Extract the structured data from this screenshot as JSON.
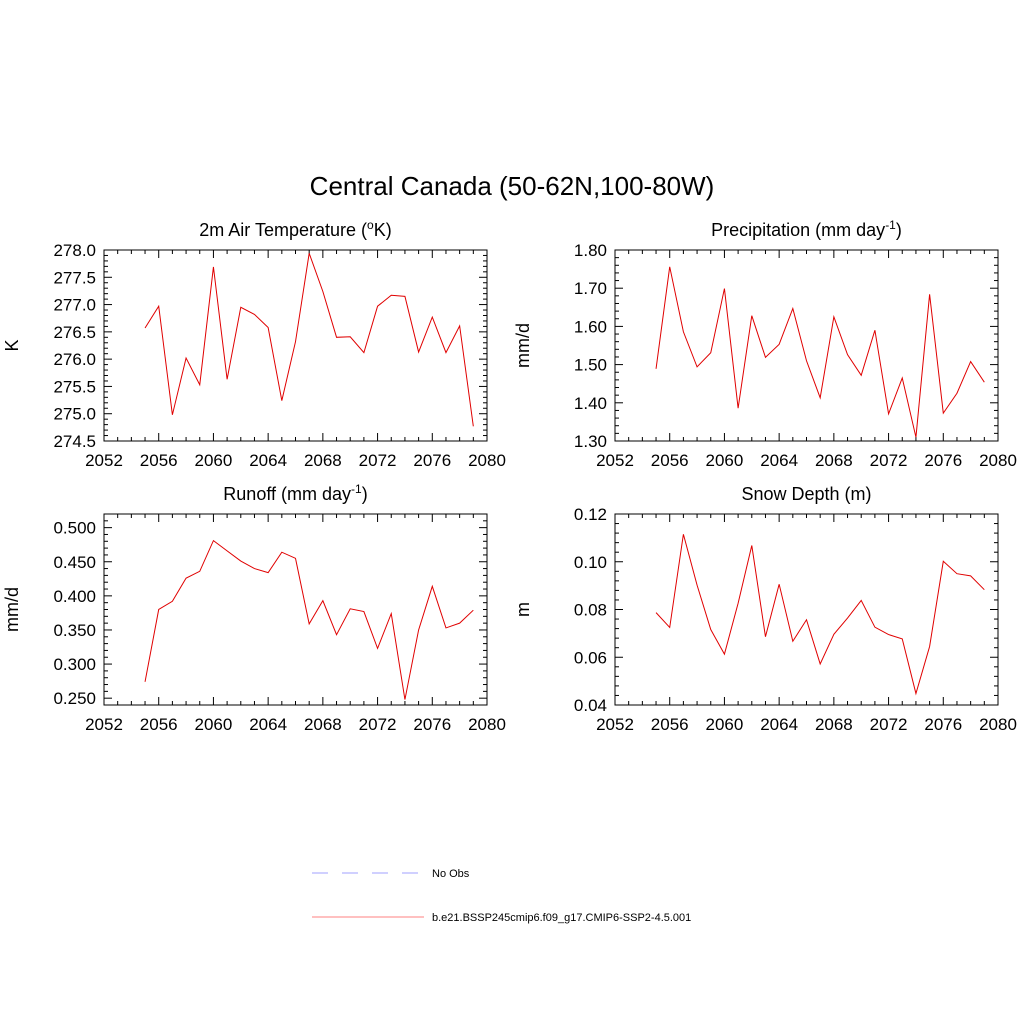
{
  "figure": {
    "title": "Central Canada (50-62N,100-80W)"
  },
  "chart_data": [
    {
      "type": "line",
      "title": "2m Air Temperature (",
      "title_sup": "o",
      "title_tail": "K)",
      "ylabel": "K",
      "xlim": [
        2052,
        2080
      ],
      "ylim": [
        274.5,
        278.0
      ],
      "x_ticks": [
        2052,
        2056,
        2060,
        2064,
        2068,
        2072,
        2076,
        2080
      ],
      "y_ticks": [
        "274.5",
        "275.0",
        "275.5",
        "276.0",
        "276.5",
        "277.0",
        "277.5",
        "278.0"
      ],
      "series": [
        {
          "color": "#e00000",
          "x": [
            2055,
            2056,
            2057,
            2058,
            2059,
            2060,
            2061,
            2062,
            2063,
            2064,
            2065,
            2066,
            2067,
            2068,
            2069,
            2070,
            2071,
            2072,
            2073,
            2074,
            2075,
            2076,
            2077,
            2078,
            2079
          ],
          "y": [
            276.57,
            276.97,
            274.98,
            276.02,
            275.53,
            277.69,
            275.63,
            276.95,
            276.82,
            276.58,
            275.24,
            276.32,
            277.94,
            277.24,
            276.4,
            276.41,
            276.12,
            276.97,
            277.17,
            277.15,
            276.13,
            276.77,
            276.12,
            276.61,
            274.77
          ]
        }
      ]
    },
    {
      "type": "line",
      "title": "Precipitation (mm day",
      "title_sup": "-1",
      "title_tail": ")",
      "ylabel": "mm/d",
      "xlim": [
        2052,
        2080
      ],
      "ylim": [
        1.3,
        1.8
      ],
      "x_ticks": [
        2052,
        2056,
        2060,
        2064,
        2068,
        2072,
        2076,
        2080
      ],
      "y_ticks": [
        "1.30",
        "1.40",
        "1.50",
        "1.60",
        "1.70",
        "1.80"
      ],
      "series": [
        {
          "color": "#e00000",
          "x": [
            2055,
            2056,
            2057,
            2058,
            2059,
            2060,
            2061,
            2062,
            2063,
            2064,
            2065,
            2066,
            2067,
            2068,
            2069,
            2070,
            2071,
            2072,
            2073,
            2074,
            2075,
            2076,
            2077,
            2078,
            2079
          ],
          "y": [
            1.489,
            1.756,
            1.586,
            1.494,
            1.531,
            1.699,
            1.386,
            1.628,
            1.519,
            1.553,
            1.647,
            1.51,
            1.413,
            1.625,
            1.526,
            1.472,
            1.59,
            1.371,
            1.465,
            1.31,
            1.684,
            1.373,
            1.425,
            1.508,
            1.454
          ]
        }
      ]
    },
    {
      "type": "line",
      "title": "Runoff (mm day",
      "title_sup": "-1",
      "title_tail": ")",
      "ylabel": "mm/d",
      "xlim": [
        2052,
        2080
      ],
      "ylim": [
        0.24,
        0.52
      ],
      "x_ticks": [
        2052,
        2056,
        2060,
        2064,
        2068,
        2072,
        2076,
        2080
      ],
      "y_ticks": [
        "0.250",
        "0.300",
        "0.350",
        "0.400",
        "0.450",
        "0.500"
      ],
      "series": [
        {
          "color": "#e00000",
          "x": [
            2055,
            2056,
            2057,
            2058,
            2059,
            2060,
            2061,
            2062,
            2063,
            2064,
            2065,
            2066,
            2067,
            2068,
            2069,
            2070,
            2071,
            2072,
            2073,
            2074,
            2075,
            2076,
            2077,
            2078,
            2079
          ],
          "y": [
            0.274,
            0.38,
            0.392,
            0.426,
            0.436,
            0.481,
            0.466,
            0.451,
            0.44,
            0.434,
            0.464,
            0.455,
            0.359,
            0.393,
            0.343,
            0.381,
            0.377,
            0.323,
            0.374,
            0.248,
            0.35,
            0.414,
            0.353,
            0.36,
            0.379
          ]
        }
      ]
    },
    {
      "type": "line",
      "title": "Snow Depth (m)",
      "title_sup": "",
      "title_tail": "",
      "ylabel": "m",
      "xlim": [
        2052,
        2080
      ],
      "ylim": [
        0.04,
        0.12
      ],
      "x_ticks": [
        2052,
        2056,
        2060,
        2064,
        2068,
        2072,
        2076,
        2080
      ],
      "y_ticks": [
        "0.04",
        "0.06",
        "0.08",
        "0.10",
        "0.12"
      ],
      "series": [
        {
          "color": "#e00000",
          "x": [
            2055,
            2056,
            2057,
            2058,
            2059,
            2060,
            2061,
            2062,
            2063,
            2064,
            2065,
            2066,
            2067,
            2068,
            2069,
            2070,
            2071,
            2072,
            2073,
            2074,
            2075,
            2076,
            2077,
            2078,
            2079
          ],
          "y": [
            0.0787,
            0.0725,
            0.1115,
            0.0902,
            0.0716,
            0.0613,
            0.0826,
            0.1068,
            0.0686,
            0.0906,
            0.0667,
            0.0757,
            0.0572,
            0.0696,
            0.0764,
            0.0838,
            0.0726,
            0.0695,
            0.0677,
            0.0448,
            0.0645,
            0.1002,
            0.095,
            0.0941,
            0.0883
          ]
        }
      ]
    }
  ],
  "legend": {
    "items": [
      {
        "label": "No Obs",
        "color": "#a0a0ff",
        "dash": true
      },
      {
        "label": "b.e21.BSSP245cmip6.f09_g17.CMIP6-SSP2-4.5.001",
        "color": "#ff8080",
        "dash": false
      }
    ]
  }
}
